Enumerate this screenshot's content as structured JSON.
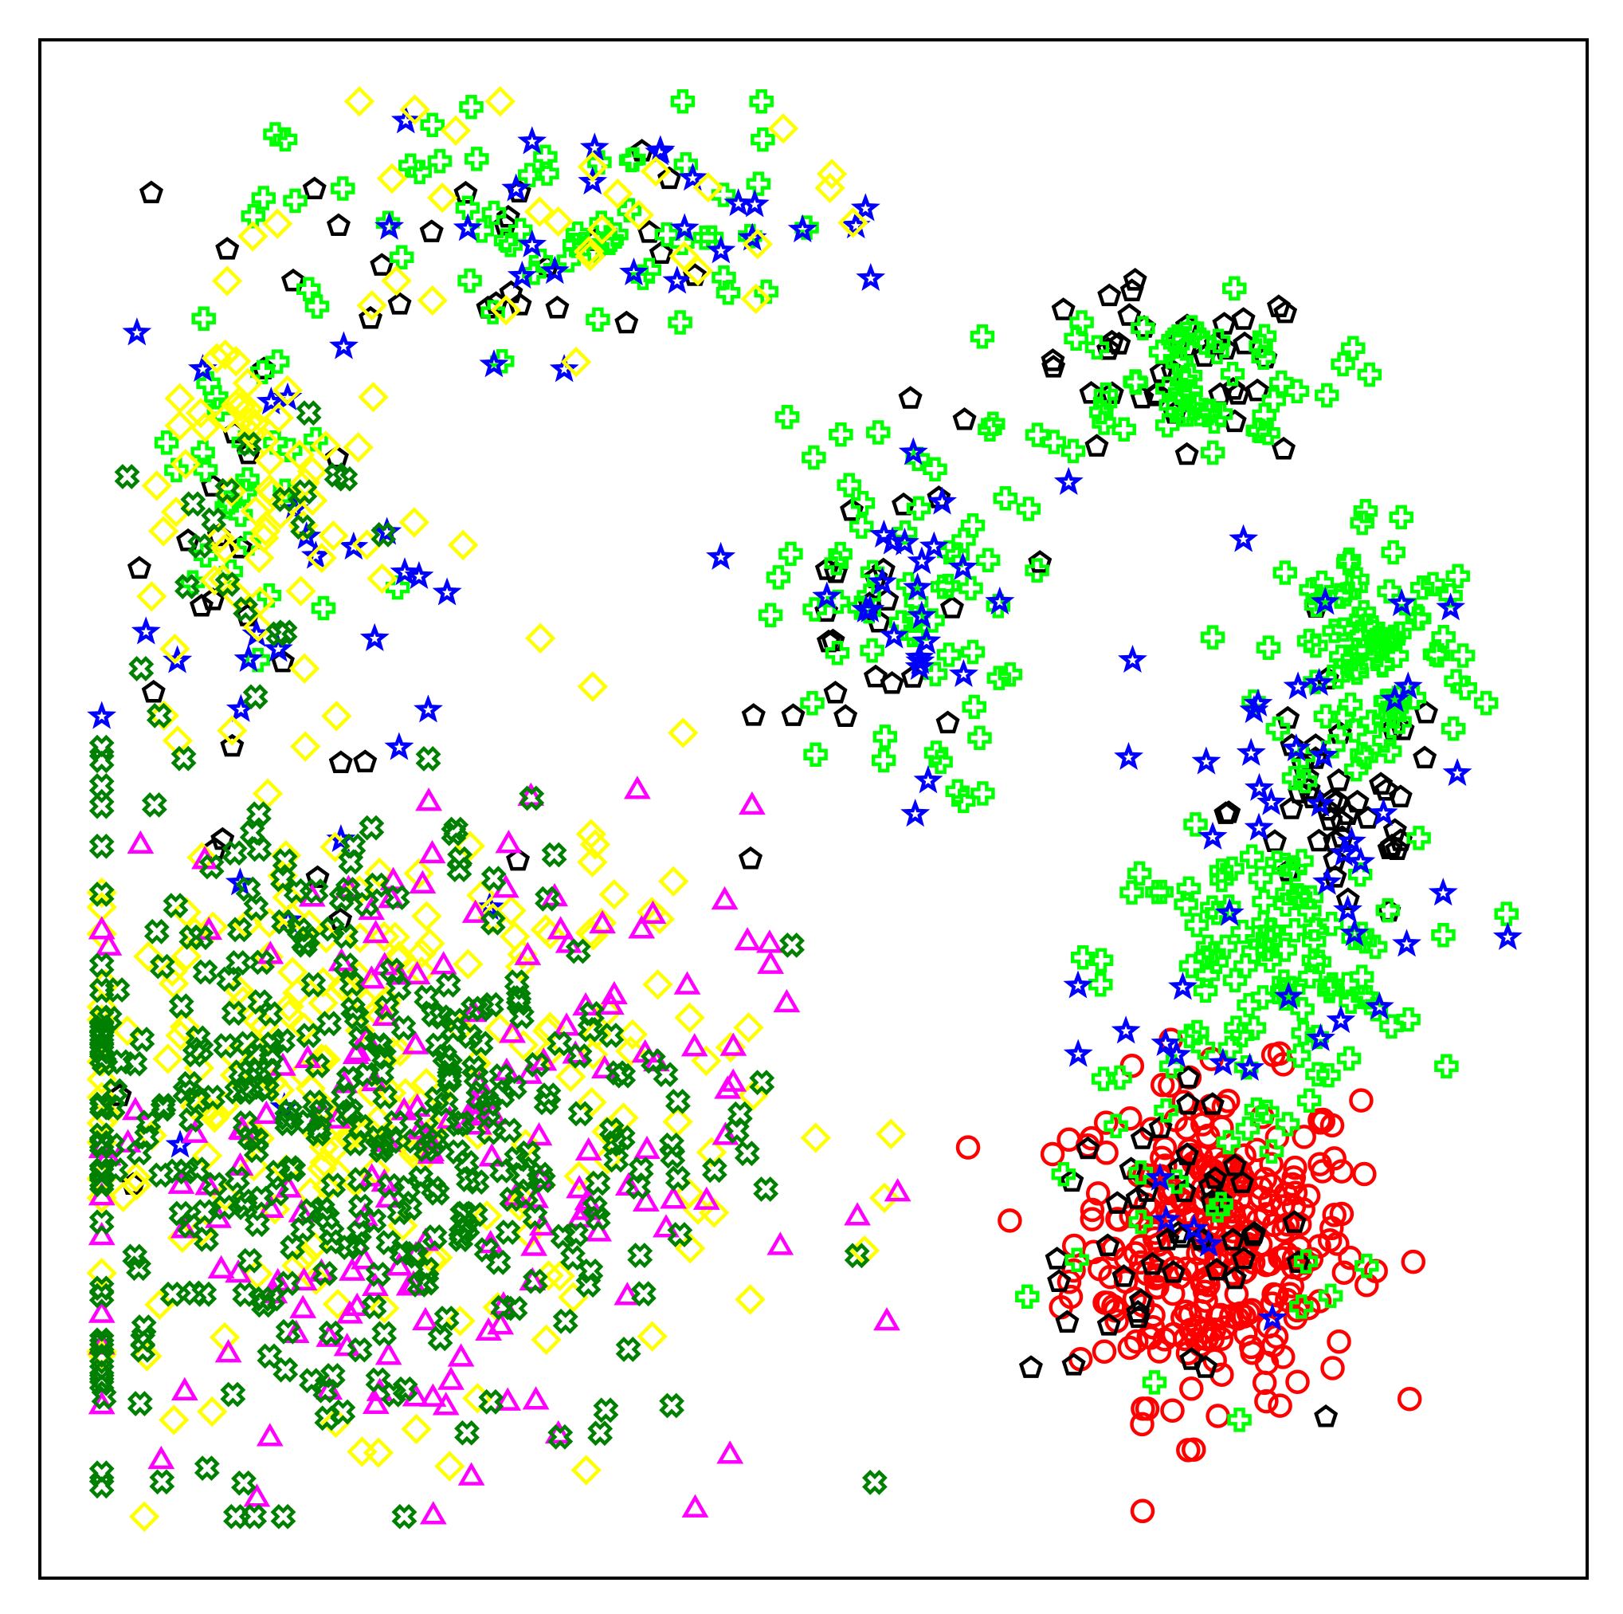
{
  "chart_data": {
    "type": "scatter",
    "title": "",
    "xlabel": "",
    "ylabel": "",
    "xlim": [
      0,
      100
    ],
    "ylim": [
      0,
      100
    ],
    "grid": false,
    "legend": "none",
    "axis_ticks": "hidden",
    "series": [
      {
        "marker": "circle",
        "color": "#ff0000",
        "clusters": [
          {
            "cx": 76,
            "cy": 22,
            "sx": 4.6,
            "sy": 5.2,
            "n": 300
          }
        ]
      },
      {
        "marker": "pentagon",
        "color": "#000000",
        "clusters": [
          {
            "cx": 73,
            "cy": 22,
            "sx": 4.5,
            "sy": 4.5,
            "n": 50
          },
          {
            "cx": 84,
            "cy": 50,
            "sx": 3.5,
            "sy": 4.0,
            "n": 45
          },
          {
            "cx": 73,
            "cy": 78,
            "sx": 5.0,
            "sy": 3.0,
            "n": 40
          },
          {
            "cx": 55,
            "cy": 62,
            "sx": 4.0,
            "sy": 6.0,
            "n": 25
          },
          {
            "cx": 30,
            "cy": 87,
            "sx": 8.0,
            "sy": 3.0,
            "n": 25
          },
          {
            "cx": 14,
            "cy": 70,
            "sx": 4.0,
            "sy": 6.0,
            "n": 15
          },
          {
            "cx": 18,
            "cy": 42,
            "sx": 9.0,
            "sy": 8.0,
            "n": 10
          }
        ]
      },
      {
        "marker": "plus",
        "color": "#00ff00",
        "clusters": [
          {
            "cx": 79,
            "cy": 40,
            "sx": 5.0,
            "sy": 4.0,
            "n": 100
          },
          {
            "cx": 86,
            "cy": 60,
            "sx": 3.5,
            "sy": 5.0,
            "n": 90
          },
          {
            "cx": 74,
            "cy": 78,
            "sx": 5.0,
            "sy": 2.5,
            "n": 60
          },
          {
            "cx": 55,
            "cy": 63,
            "sx": 4.0,
            "sy": 6.5,
            "n": 60
          },
          {
            "cx": 34,
            "cy": 88,
            "sx": 9.0,
            "sy": 4.0,
            "n": 60
          },
          {
            "cx": 14,
            "cy": 71,
            "sx": 4.0,
            "sy": 7.0,
            "n": 30
          },
          {
            "cx": 75,
            "cy": 26,
            "sx": 5.0,
            "sy": 6.0,
            "n": 25
          }
        ]
      },
      {
        "marker": "star",
        "color": "#0000ff",
        "clusters": [
          {
            "cx": 82,
            "cy": 50,
            "sx": 6.0,
            "sy": 8.0,
            "n": 40
          },
          {
            "cx": 56,
            "cy": 64,
            "sx": 4.0,
            "sy": 6.0,
            "n": 25
          },
          {
            "cx": 38,
            "cy": 88,
            "sx": 9.0,
            "sy": 3.0,
            "n": 25
          },
          {
            "cx": 20,
            "cy": 62,
            "sx": 8.0,
            "sy": 12.0,
            "n": 30
          },
          {
            "cx": 74,
            "cy": 26,
            "sx": 5.0,
            "sy": 6.0,
            "n": 10
          }
        ]
      },
      {
        "marker": "diamond",
        "color": "#ffff00",
        "clusters": [
          {
            "cx": 22,
            "cy": 32,
            "sx": 12.0,
            "sy": 10.0,
            "n": 230
          },
          {
            "cx": 14,
            "cy": 70,
            "sx": 4.5,
            "sy": 7.0,
            "n": 60
          },
          {
            "cx": 34,
            "cy": 88,
            "sx": 9.0,
            "sy": 4.0,
            "n": 30
          }
        ]
      },
      {
        "marker": "triangle",
        "color": "#ff00ff",
        "clusters": [
          {
            "cx": 24,
            "cy": 28,
            "sx": 11.0,
            "sy": 11.0,
            "n": 180
          }
        ]
      },
      {
        "marker": "x",
        "color": "#008000",
        "clusters": [
          {
            "cx": 20,
            "cy": 30,
            "sx": 12.0,
            "sy": 11.0,
            "n": 380
          },
          {
            "cx": 13,
            "cy": 68,
            "sx": 3.5,
            "sy": 5.0,
            "n": 20
          }
        ]
      }
    ]
  }
}
